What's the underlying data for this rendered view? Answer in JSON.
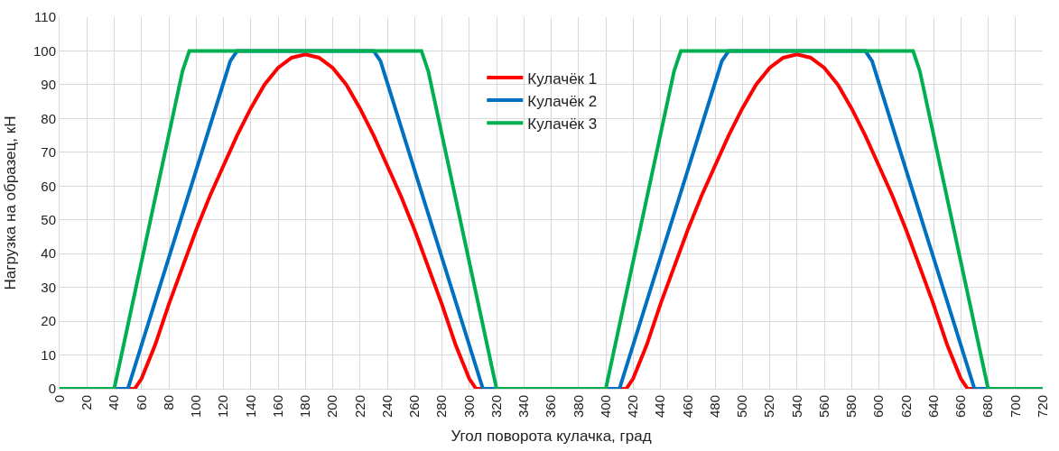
{
  "chart_data": {
    "type": "line",
    "xlabel": "Угол поворота кулачка, град",
    "ylabel": "Нагрузка на образец, кН",
    "xlim": [
      0,
      720
    ],
    "xticks": [
      0,
      20,
      40,
      60,
      80,
      100,
      120,
      140,
      160,
      180,
      200,
      220,
      240,
      260,
      280,
      300,
      320,
      340,
      360,
      380,
      400,
      420,
      440,
      460,
      480,
      500,
      520,
      540,
      560,
      580,
      600,
      620,
      640,
      660,
      680,
      700,
      720
    ],
    "ylim": [
      0,
      110
    ],
    "yticks": [
      0,
      10,
      20,
      30,
      40,
      50,
      60,
      70,
      80,
      90,
      100,
      110
    ],
    "grid": true,
    "legend": "top",
    "marker": "none",
    "line_style": "solid",
    "series": [
      {
        "name": "Кулачёк 1",
        "color": "#ff0000",
        "x": [
          0,
          55,
          60,
          70,
          80,
          90,
          100,
          110,
          120,
          130,
          140,
          150,
          160,
          170,
          180,
          190,
          200,
          210,
          220,
          230,
          240,
          250,
          260,
          270,
          280,
          290,
          300,
          305,
          415,
          420,
          430,
          440,
          450,
          460,
          470,
          480,
          490,
          500,
          510,
          520,
          530,
          540,
          550,
          560,
          570,
          580,
          590,
          600,
          610,
          620,
          630,
          640,
          650,
          660,
          665,
          720
        ],
        "values": [
          0,
          0,
          3,
          13,
          25,
          36,
          47,
          57,
          66,
          75,
          83,
          90,
          95,
          98,
          99,
          98,
          95,
          90,
          83,
          75,
          66,
          57,
          47,
          36,
          25,
          13,
          3,
          0,
          0,
          3,
          13,
          25,
          36,
          47,
          57,
          66,
          75,
          83,
          90,
          95,
          98,
          99,
          98,
          95,
          90,
          83,
          75,
          66,
          57,
          47,
          36,
          25,
          13,
          3,
          0,
          0
        ]
      },
      {
        "name": "Кулачёк 2",
        "color": "#0070c0",
        "x": [
          0,
          50,
          125,
          130,
          230,
          235,
          310,
          410,
          485,
          490,
          590,
          595,
          670,
          720
        ],
        "values": [
          0,
          0,
          97,
          100,
          100,
          97,
          0,
          0,
          97,
          100,
          100,
          97,
          0,
          0
        ]
      },
      {
        "name": "Кулачёк 3",
        "color": "#00b050",
        "x": [
          0,
          40,
          90,
          95,
          265,
          270,
          320,
          400,
          450,
          455,
          625,
          630,
          680,
          720
        ],
        "values": [
          0,
          0,
          94,
          100,
          100,
          94,
          0,
          0,
          94,
          100,
          100,
          94,
          0,
          0
        ]
      }
    ]
  }
}
